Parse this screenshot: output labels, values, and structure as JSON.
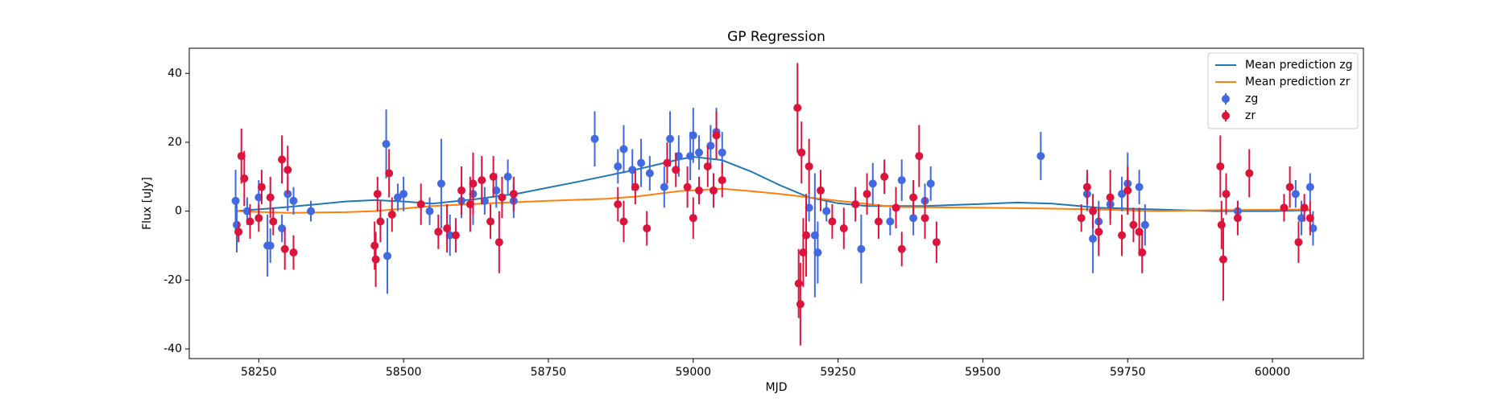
{
  "chart_data": {
    "type": "errorbar",
    "title": "GP Regression",
    "xlabel": "MJD",
    "ylabel": "Flux [uJy]",
    "xlim": [
      58130,
      60157
    ],
    "ylim": [
      -42.8,
      47.3
    ],
    "xticks": [
      58250,
      58500,
      58750,
      59000,
      59250,
      59500,
      59750,
      60000
    ],
    "yticks": [
      -40,
      -20,
      0,
      20,
      40
    ],
    "grid": false,
    "legend": "upper right",
    "series": [
      {
        "name": "Mean prediction zg",
        "style": "line",
        "color": "#1f77b4",
        "x": [
          58210,
          58300,
          58400,
          58450,
          58500,
          58550,
          58625,
          58700,
          58800,
          58900,
          58975,
          59000,
          59050,
          59100,
          59150,
          59200,
          59250,
          59300,
          59400,
          59500,
          59560,
          59620,
          59700,
          59800,
          59900,
          60000,
          60065
        ],
        "values": [
          0,
          1.2,
          2.8,
          3.2,
          2.8,
          2.2,
          3.5,
          5.2,
          8.5,
          12,
          15,
          15.8,
          14.8,
          11.5,
          7.5,
          4,
          2.3,
          1.5,
          1.5,
          2.1,
          2.5,
          2.2,
          1,
          0.5,
          0,
          0,
          0.3
        ]
      },
      {
        "name": "Mean prediction zr",
        "style": "line",
        "color": "#ff7f0e",
        "x": [
          58210,
          58300,
          58400,
          58450,
          58550,
          58650,
          58750,
          58850,
          58900,
          58975,
          59050,
          59100,
          59150,
          59200,
          59250,
          59350,
          59500,
          59600,
          59700,
          59800,
          59900,
          60000,
          60065
        ],
        "values": [
          0,
          -0.5,
          -0.3,
          0,
          1.5,
          2.3,
          3,
          3.6,
          4.2,
          5.8,
          6.5,
          5.8,
          5,
          4,
          3,
          1.2,
          1,
          0.8,
          0.5,
          0,
          0.3,
          0.4,
          0.5
        ]
      },
      {
        "name": "zg",
        "style": "errorbar",
        "color": "#4169e1",
        "x": [
          58210,
          58212,
          58230,
          58250,
          58265,
          58270,
          58290,
          58300,
          58310,
          58340,
          58470,
          58472,
          58490,
          58500,
          58545,
          58565,
          58580,
          58600,
          58620,
          58640,
          58660,
          58680,
          58690,
          58830,
          58870,
          58880,
          58895,
          58910,
          58925,
          58950,
          58960,
          58975,
          58995,
          59000,
          59010,
          59030,
          59040,
          59050,
          59200,
          59210,
          59215,
          59230,
          59290,
          59310,
          59340,
          59360,
          59380,
          59400,
          59410,
          59600,
          59680,
          59690,
          59700,
          59720,
          59740,
          59750,
          59770,
          59780,
          59940,
          60040,
          60050,
          60065,
          60070
        ],
        "values": [
          3,
          -4,
          0,
          4,
          -10,
          -10,
          -5,
          5,
          3,
          0,
          19.5,
          -13,
          4,
          5,
          0,
          8,
          -7,
          3,
          5,
          3,
          6,
          10,
          3,
          21,
          13,
          18,
          12,
          14,
          11,
          7,
          21,
          16,
          16,
          22,
          17,
          19,
          23,
          17,
          1,
          -7,
          -12,
          0,
          -11,
          8,
          -3,
          9,
          -2,
          3,
          8,
          16,
          5,
          -8,
          -3,
          2,
          5,
          8,
          7,
          -4,
          0,
          5,
          -2,
          7,
          -5
        ],
        "errors": [
          9,
          8,
          4,
          5,
          9,
          5,
          4,
          5,
          4,
          3,
          10,
          11,
          4,
          5,
          4,
          13,
          6,
          5,
          9,
          4,
          5,
          5,
          5,
          8,
          5,
          7,
          6,
          7,
          5,
          6,
          8,
          6,
          7,
          8,
          5,
          6,
          7,
          6,
          4,
          18,
          9,
          3,
          10,
          6,
          4,
          6,
          5,
          5,
          5,
          7,
          5,
          10,
          6,
          4,
          5,
          9,
          5,
          6,
          3,
          4,
          5,
          4,
          5
        ]
      },
      {
        "name": "zr",
        "style": "errorbar",
        "color": "#dc143c",
        "x": [
          58215,
          58220,
          58225,
          58235,
          58250,
          58255,
          58270,
          58275,
          58290,
          58295,
          58300,
          58310,
          58450,
          58452,
          58455,
          58460,
          58475,
          58480,
          58530,
          58560,
          58575,
          58590,
          58600,
          58615,
          58620,
          58635,
          58650,
          58655,
          58665,
          58670,
          58690,
          58870,
          58880,
          58900,
          58920,
          58955,
          58970,
          58990,
          59000,
          59010,
          59025,
          59035,
          59040,
          59050,
          59180,
          59182,
          59185,
          59187,
          59190,
          59195,
          59200,
          59220,
          59240,
          59260,
          59280,
          59300,
          59320,
          59330,
          59350,
          59360,
          59380,
          59390,
          59400,
          59420,
          59670,
          59680,
          59690,
          59700,
          59720,
          59740,
          59750,
          59760,
          59770,
          59775,
          59910,
          59912,
          59915,
          59920,
          59940,
          59960,
          60020,
          60030,
          60045,
          60055,
          60065
        ],
        "values": [
          -6,
          16,
          9.5,
          -3,
          -2,
          7,
          4,
          -3,
          15,
          -11,
          12,
          -12,
          -10,
          -14,
          5,
          -3,
          11,
          -1,
          2,
          -6,
          -5,
          -7,
          6,
          2,
          8,
          9,
          -3,
          10,
          -9,
          4,
          5,
          2,
          -3,
          7,
          -5,
          14,
          12,
          7,
          -2,
          6,
          13,
          6,
          22,
          9,
          30,
          -21,
          -27,
          17,
          -12,
          -7,
          13,
          6,
          -3,
          -5,
          2,
          5,
          -3,
          10,
          1,
          -11,
          4,
          16,
          -2,
          -9,
          -2,
          7,
          0,
          -6,
          4,
          -7,
          6,
          -4,
          -6,
          -12,
          13,
          -4,
          -14,
          5,
          -2,
          11,
          1,
          7,
          -9,
          1,
          -2
        ],
        "errors": [
          3,
          8,
          8,
          5,
          4,
          5,
          6,
          4,
          7,
          6,
          7,
          5,
          7,
          8,
          5,
          6,
          7,
          5,
          6,
          5,
          7,
          5,
          7,
          8,
          9,
          7,
          5,
          6,
          9,
          6,
          5,
          5,
          6,
          5,
          5,
          6,
          5,
          6,
          6,
          4,
          6,
          5,
          7,
          5,
          13,
          10,
          12,
          9,
          10,
          12,
          8,
          6,
          5,
          6,
          5,
          6,
          5,
          5,
          6,
          5,
          5,
          9,
          6,
          6,
          4,
          5,
          5,
          7,
          8,
          6,
          7,
          5,
          7,
          6,
          9,
          7,
          12,
          6,
          5,
          7,
          4,
          6,
          6,
          4,
          5
        ]
      }
    ]
  }
}
